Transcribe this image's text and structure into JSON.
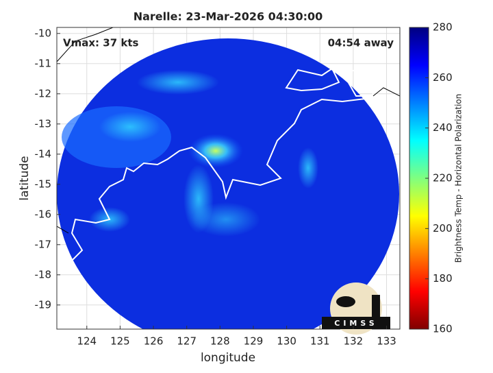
{
  "chart_data": {
    "type": "map",
    "title": "Narelle: 23-Mar-2026 04:30:00",
    "annotation_left": "Vmax: 37 kts",
    "annotation_right": "04:54 away",
    "xlabel": "longitude",
    "ylabel": "latitude",
    "xlim": [
      123.1,
      133.4
    ],
    "ylim": [
      -19.8,
      -9.8
    ],
    "xticks": [
      124,
      125,
      126,
      127,
      128,
      129,
      130,
      131,
      132,
      133
    ],
    "yticks": [
      -10,
      -11,
      -12,
      -13,
      -14,
      -15,
      -16,
      -17,
      -18,
      -19
    ],
    "grid": true,
    "colorbar": {
      "label": "Brightness Temp - Horizontal Polarization",
      "lim": [
        160,
        280
      ],
      "ticks": [
        160,
        180,
        200,
        220,
        240,
        260,
        280
      ]
    },
    "logo": "CIMSS"
  }
}
